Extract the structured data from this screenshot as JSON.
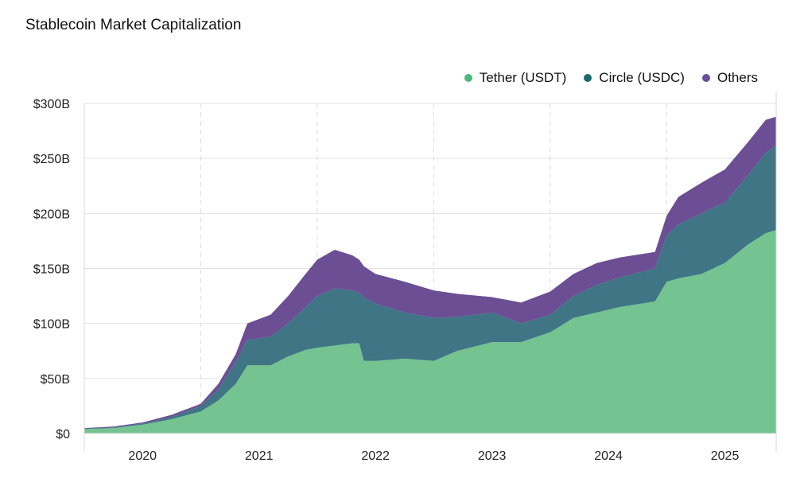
{
  "chart_data": {
    "type": "area",
    "stacked": true,
    "title": "Stablecoin Market Capitalization",
    "xlabel": "",
    "ylabel": "",
    "xlim": [
      2020.0,
      2025.94
    ],
    "ylim": [
      0,
      300
    ],
    "y_ticks": [
      "$0",
      "$50B",
      "$100B",
      "$150B",
      "$200B",
      "$250B",
      "$300B"
    ],
    "y_tick_values": [
      0,
      50,
      100,
      150,
      200,
      250,
      300
    ],
    "x_ticks": [
      "2020",
      "2021",
      "2022",
      "2023",
      "2024",
      "2025"
    ],
    "x_tick_values": [
      2020,
      2021,
      2022,
      2023,
      2024,
      2025
    ],
    "legend_position": "top-right",
    "x": [
      2020.0,
      2020.25,
      2020.5,
      2020.75,
      2021.0,
      2021.15,
      2021.3,
      2021.4,
      2021.6,
      2021.75,
      2021.9,
      2022.0,
      2022.15,
      2022.3,
      2022.36,
      2022.4,
      2022.5,
      2022.75,
      2023.0,
      2023.2,
      2023.5,
      2023.75,
      2024.0,
      2024.2,
      2024.4,
      2024.6,
      2024.9,
      2025.0,
      2025.1,
      2025.3,
      2025.5,
      2025.7,
      2025.85,
      2025.94
    ],
    "series": [
      {
        "name": "Tether (USDT)",
        "color": "#74c391",
        "values": [
          4,
          5,
          8,
          13,
          20,
          30,
          45,
          62,
          62,
          70,
          76,
          78,
          80,
          82,
          82,
          66,
          66,
          68,
          66,
          75,
          83,
          83,
          92,
          105,
          110,
          115,
          120,
          138,
          141,
          145,
          155,
          172,
          182,
          185
        ]
      },
      {
        "name": "Circle (USDC)",
        "color": "#3f7585",
        "values": [
          0.5,
          0.7,
          1,
          2,
          5,
          10,
          20,
          23,
          26,
          30,
          39,
          47,
          52,
          48,
          46,
          58,
          52,
          42,
          39,
          31,
          27,
          17,
          16,
          20,
          25,
          27,
          30,
          42,
          49,
          55,
          55,
          63,
          73,
          77
        ]
      },
      {
        "name": "Others",
        "color": "#6b4e94",
        "values": [
          0.5,
          0.6,
          1,
          2,
          2,
          5,
          7,
          15,
          20,
          25,
          30,
          33,
          35,
          32,
          30,
          28,
          27,
          28,
          25,
          21,
          14,
          19,
          21,
          20,
          20,
          18,
          15,
          18,
          25,
          28,
          30,
          30,
          30,
          26
        ]
      }
    ],
    "legend_dot_colors": [
      "#4cb87a",
      "#1a6b6f",
      "#6b4f9a"
    ]
  }
}
